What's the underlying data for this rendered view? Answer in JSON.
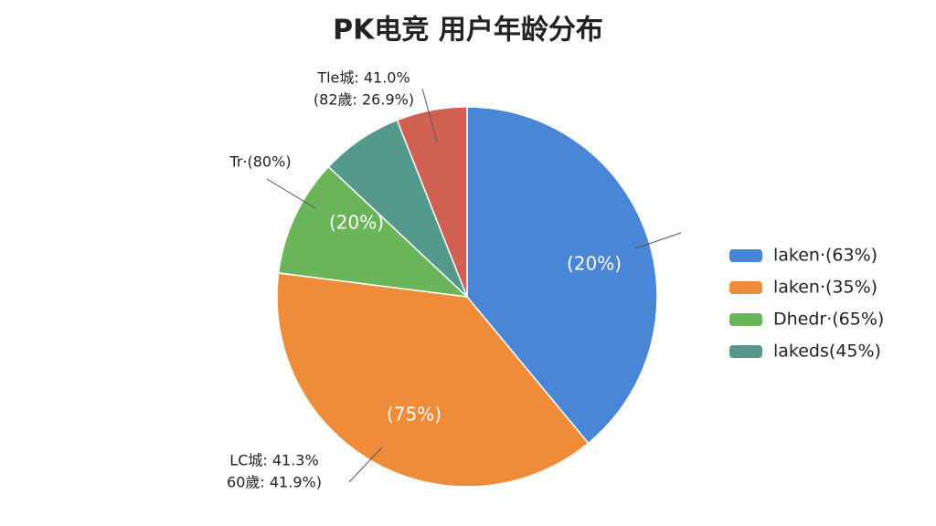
{
  "chart_data": {
    "type": "pie",
    "title": "PK电竞 用户年龄分布",
    "categories": [
      "laken·(63%)",
      "laken·(35%)",
      "Dhedr·(65%)",
      "lakeds(45%)",
      null
    ],
    "values": [
      39,
      38,
      10,
      7,
      6
    ],
    "colors": [
      "#4a86d6",
      "#ee8c3a",
      "#6ab55a",
      "#55998a",
      "#d06152"
    ],
    "slice_texts": [
      "(20%)",
      "(75%)",
      "(20%)",
      null,
      null
    ],
    "annotations": [
      [
        "Tle城: 4⁠1.0%",
        "(82歲: 26.9%)"
      ],
      [
        "Tr·(80%)"
      ],
      [
        "LC城: 41.3%",
        "60歲: 41.9%)"
      ]
    ],
    "legend": "right"
  }
}
